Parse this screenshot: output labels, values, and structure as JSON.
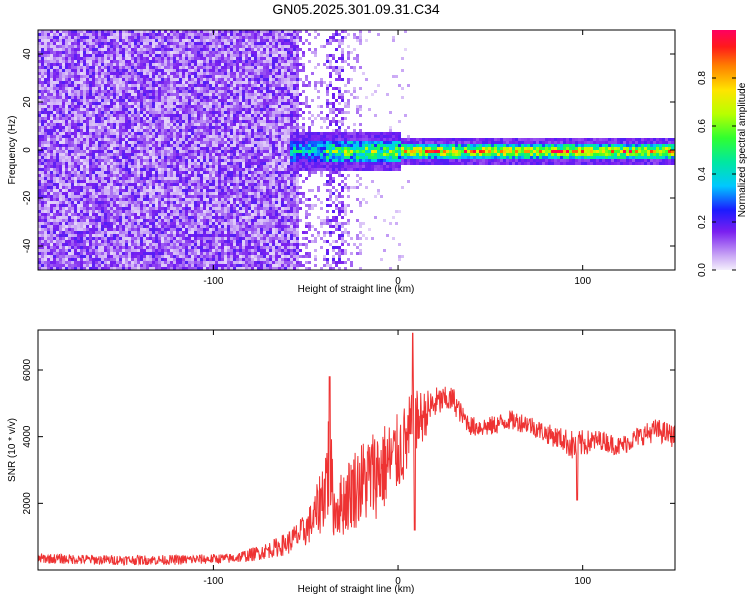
{
  "title": "GN05.2025.301.09.31.C34",
  "chart_data": [
    {
      "type": "heatmap",
      "xlabel": "Height of straight line (km)",
      "ylabel": "Frequency (Hz)",
      "xlim": [
        -195,
        150
      ],
      "ylim": [
        -50,
        50
      ],
      "xticks": [
        -100,
        0,
        100
      ],
      "yticks": [
        -40,
        -20,
        0,
        20,
        40
      ],
      "colorbar": {
        "label": "Normalized spectral amplitude",
        "range": [
          0,
          1
        ],
        "ticks": [
          0.0,
          0.2,
          0.4,
          0.6,
          0.8
        ]
      },
      "description_regions": [
        {
          "x_from": -195,
          "x_to": -55,
          "pattern": "broadband noise, amplitude ~0.1-0.2 across all frequencies"
        },
        {
          "x_from": -55,
          "x_to": 0,
          "pattern": "fading noise, signal band near 0 Hz with amplitude ~0.3-0.5"
        },
        {
          "x_from": 0,
          "x_to": 150,
          "pattern": "narrow band at ~0 Hz, amplitude ~0.6-1.0"
        }
      ]
    },
    {
      "type": "line",
      "xlabel": "Height of straight line (km)",
      "ylabel": "SNR (10 * v/v)",
      "xlim": [
        -195,
        150
      ],
      "ylim": [
        0,
        7200
      ],
      "xticks": [
        -100,
        0,
        100
      ],
      "yticks": [
        2000,
        4000,
        6000
      ],
      "color": "#ee3333",
      "envelope": {
        "x": [
          -195,
          -160,
          -120,
          -90,
          -80,
          -70,
          -60,
          -50,
          -45,
          -40,
          -37,
          -35,
          -30,
          -25,
          -20,
          -15,
          -10,
          -5,
          0,
          5,
          8,
          10,
          15,
          20,
          25,
          30,
          35,
          40,
          50,
          60,
          70,
          80,
          90,
          95,
          100,
          110,
          120,
          130,
          140,
          145,
          150
        ],
        "y": [
          350,
          300,
          300,
          350,
          450,
          600,
          800,
          1200,
          1600,
          2400,
          3400,
          1800,
          2000,
          2400,
          2600,
          2800,
          3000,
          3200,
          3500,
          3900,
          4300,
          4400,
          4700,
          5000,
          5100,
          5100,
          4600,
          4300,
          4300,
          4500,
          4400,
          4100,
          3900,
          3700,
          3800,
          3900,
          3700,
          4000,
          4200,
          4100,
          4000
        ],
        "noise": [
          150,
          150,
          150,
          150,
          200,
          250,
          350,
          500,
          700,
          1200,
          2000,
          800,
          1000,
          1200,
          1300,
          1400,
          1400,
          1300,
          1200,
          1200,
          1200,
          1000,
          700,
          500,
          400,
          400,
          300,
          300,
          300,
          300,
          300,
          300,
          350,
          500,
          400,
          300,
          300,
          300,
          350,
          350,
          350
        ]
      },
      "spikes": [
        {
          "x": -37,
          "y": 5800
        },
        {
          "x": 8,
          "y": 7100
        },
        {
          "x": 9,
          "y": 1200
        },
        {
          "x": 97,
          "y": 2100
        }
      ]
    }
  ]
}
